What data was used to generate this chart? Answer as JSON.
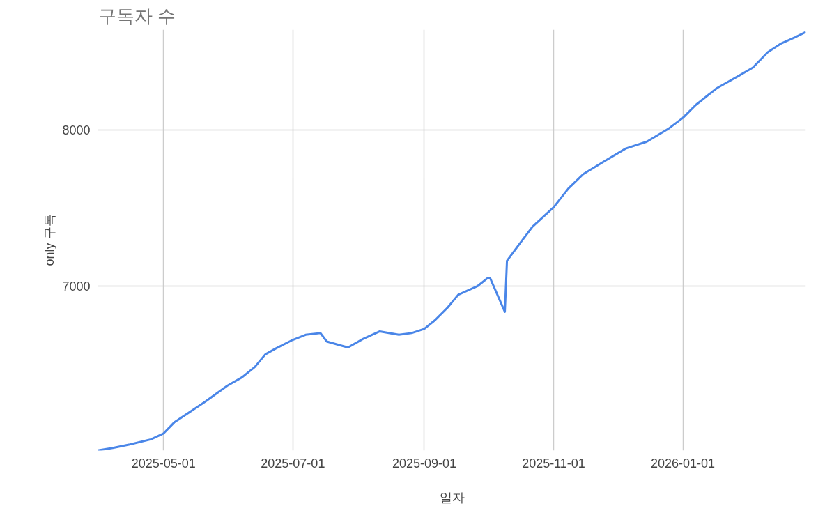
{
  "chart_data": {
    "type": "line",
    "title": "구독자 수",
    "xlabel": "일자",
    "ylabel": "only 구독",
    "x": [
      "2025-03-31",
      "2025-04-07",
      "2025-04-15",
      "2025-04-25",
      "2025-05-01",
      "2025-05-06",
      "2025-05-15",
      "2025-05-21",
      "2025-05-31",
      "2025-06-07",
      "2025-06-13",
      "2025-06-18",
      "2025-06-23",
      "2025-07-01",
      "2025-07-07",
      "2025-07-14",
      "2025-07-17",
      "2025-07-24",
      "2025-07-27",
      "2025-08-03",
      "2025-08-11",
      "2025-08-20",
      "2025-08-26",
      "2025-09-01",
      "2025-09-06",
      "2025-09-12",
      "2025-09-17",
      "2025-09-26",
      "2025-10-01",
      "2025-10-02",
      "2025-10-09",
      "2025-10-10",
      "2025-10-16",
      "2025-10-22",
      "2025-11-01",
      "2025-11-08",
      "2025-11-15",
      "2025-11-25",
      "2025-12-05",
      "2025-12-15",
      "2025-12-25",
      "2026-01-01",
      "2026-01-07",
      "2026-01-17",
      "2026-01-27",
      "2026-02-03",
      "2026-02-10",
      "2026-02-16",
      "2026-02-23",
      "2026-02-28"
    ],
    "series": [
      {
        "color": "#4a86e8",
        "values": [
          5951,
          5967,
          5989,
          6022,
          6060,
          6130,
          6212,
          6266,
          6364,
          6418,
          6484,
          6565,
          6603,
          6658,
          6690,
          6701,
          6647,
          6620,
          6609,
          6663,
          6712,
          6690,
          6701,
          6728,
          6783,
          6864,
          6946,
          7000,
          7054,
          7054,
          6837,
          7163,
          7272,
          7380,
          7505,
          7625,
          7717,
          7799,
          7880,
          7924,
          8005,
          8076,
          8158,
          8266,
          8342,
          8397,
          8495,
          8549,
          8592,
          8625
        ]
      }
    ],
    "xlim": [
      "2025-03-31",
      "2026-02-28"
    ],
    "xticks": [
      "2025-05-01",
      "2025-07-01",
      "2025-09-01",
      "2025-11-01",
      "2026-01-01"
    ],
    "ylim": [
      5950,
      8640
    ],
    "yticks": [
      7000,
      8000
    ],
    "grid": true,
    "marker": "none",
    "line_style": "solid"
  }
}
